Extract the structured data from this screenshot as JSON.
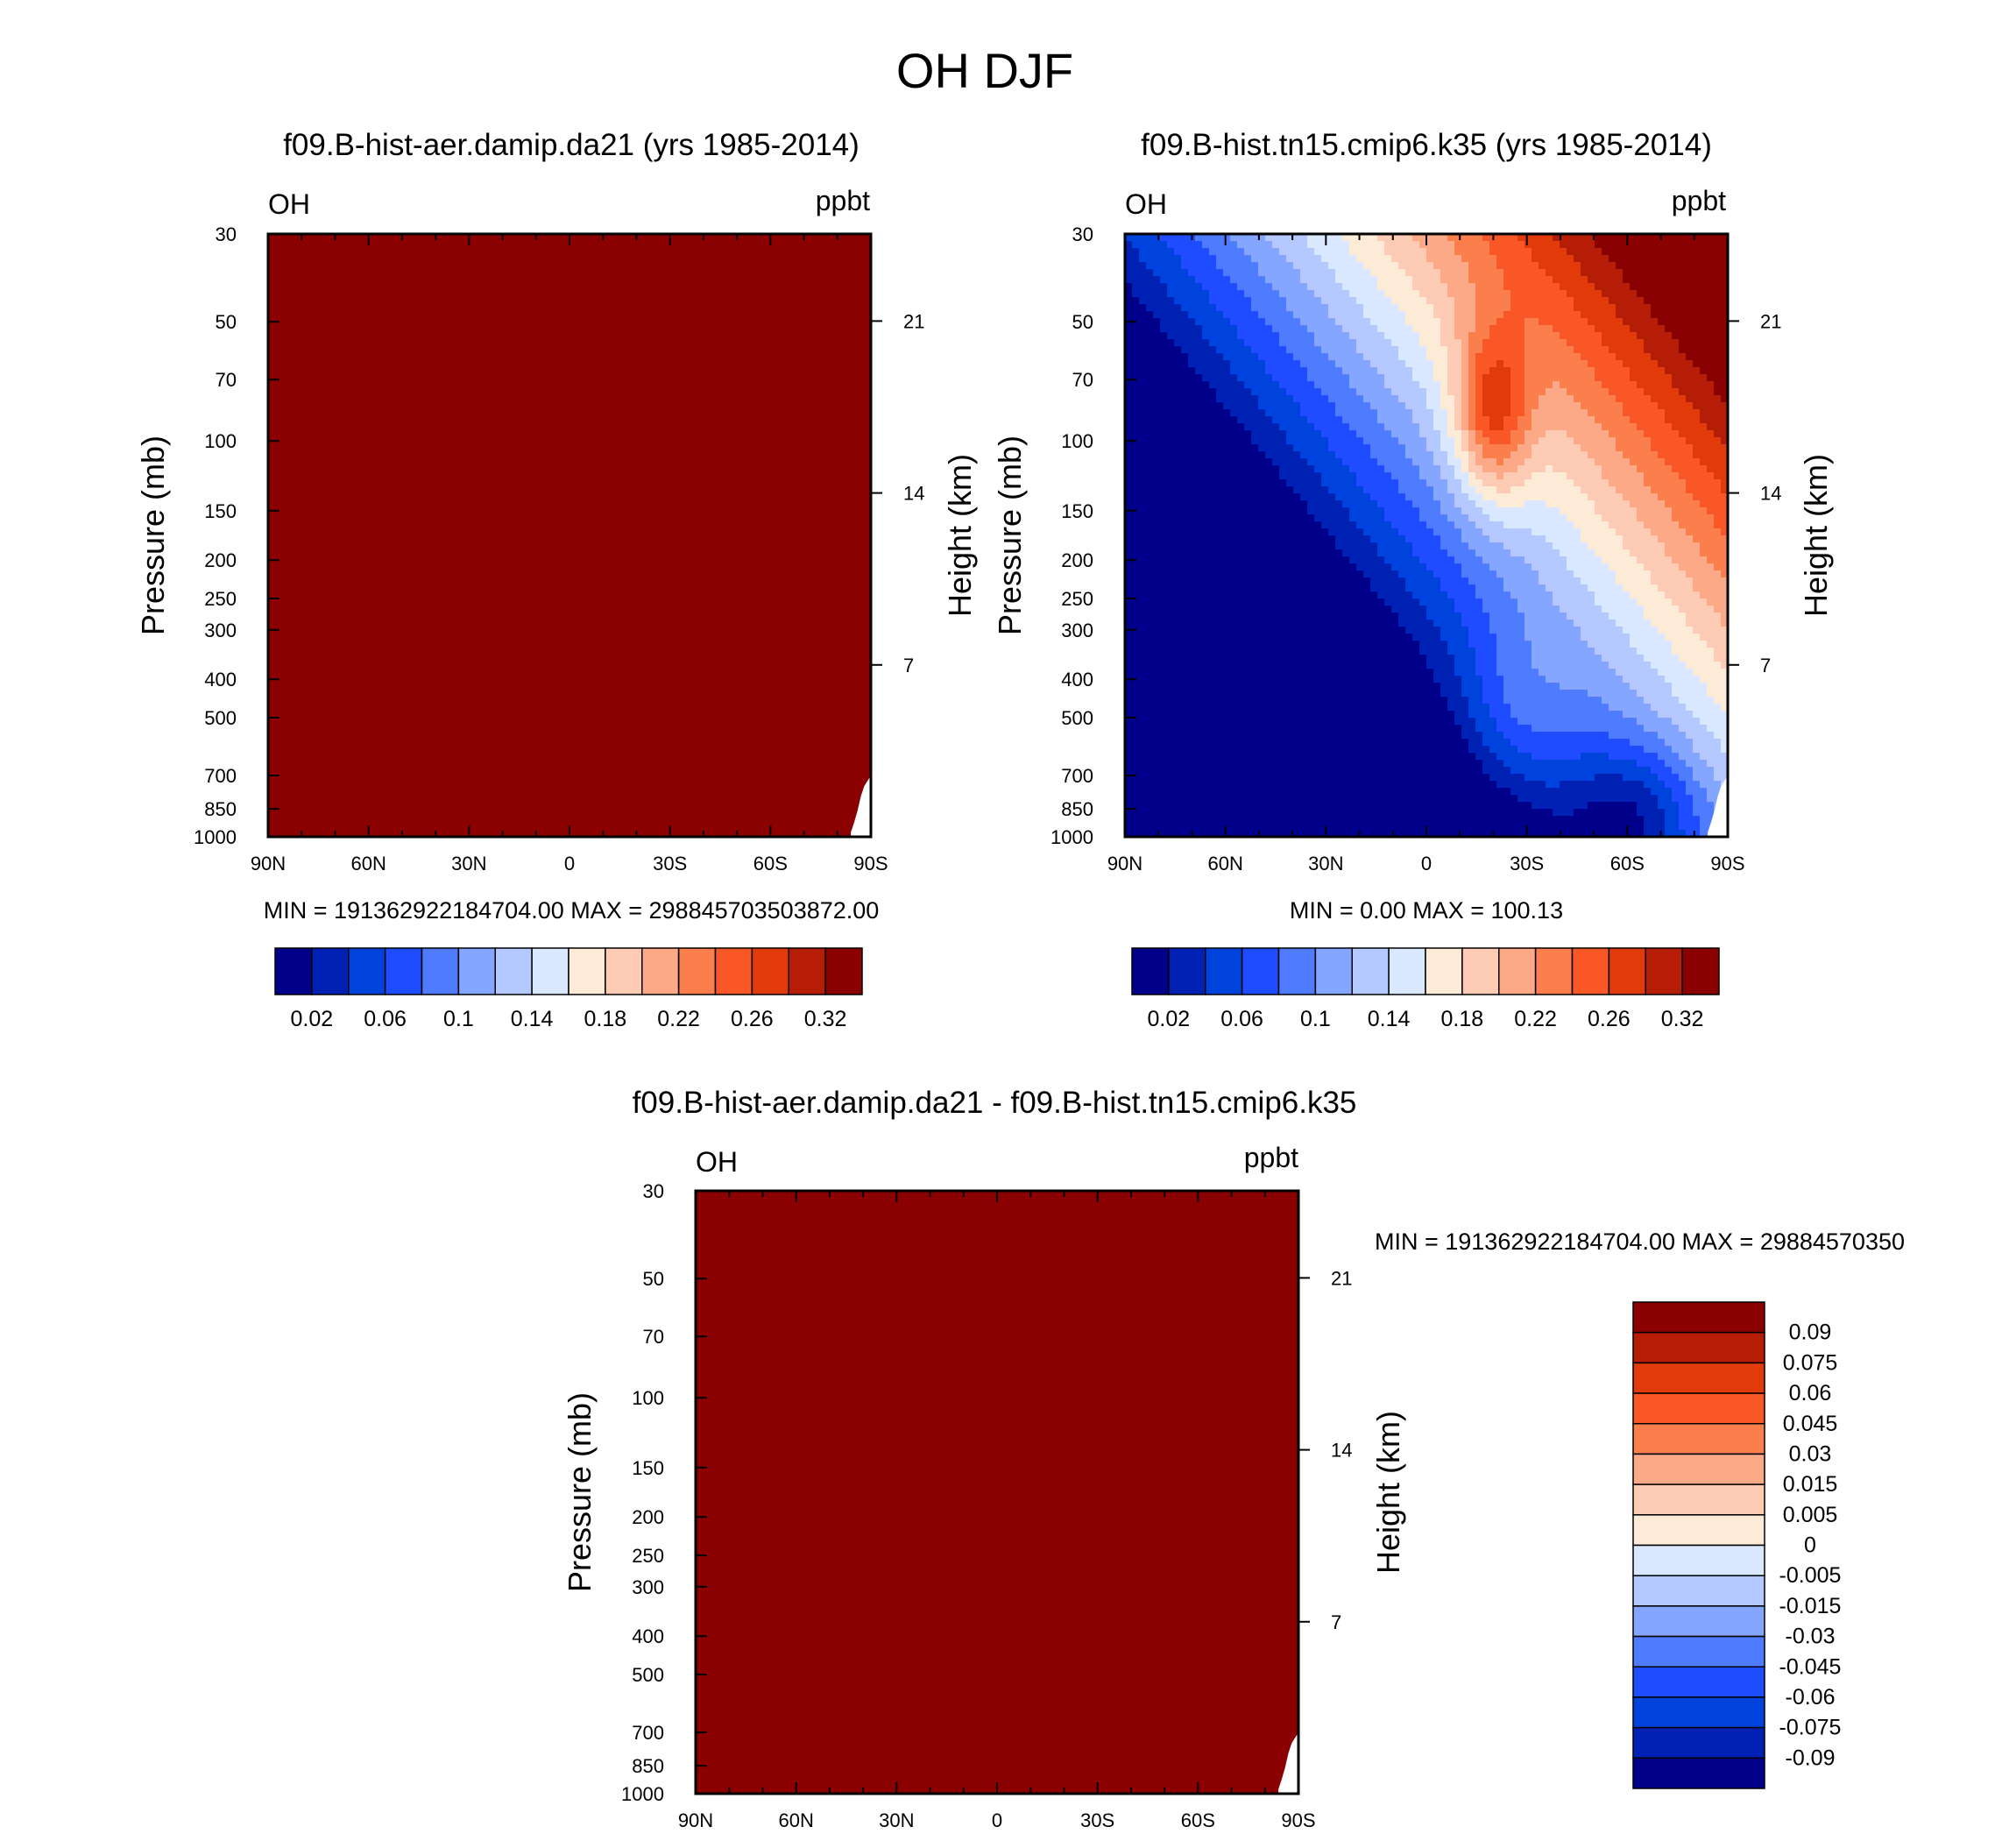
{
  "figure_title": "OH DJF",
  "colors": {
    "diverging": [
      "#00008b",
      "#0021b4",
      "#0042dc",
      "#1f4cff",
      "#4f7bff",
      "#84a6ff",
      "#b4c9ff",
      "#d9e8ff",
      "#fdebd7",
      "#fdcbb3",
      "#fca988",
      "#fb7e4d",
      "#f95725",
      "#e13a0b",
      "#b51d06",
      "#8b0000"
    ],
    "frame": "#000000",
    "background": "#ffffff"
  },
  "chart_data": [
    {
      "id": "panel-1",
      "type": "contour",
      "title": "f09.B-hist-aer.damip.da21 (yrs 1985-2014)",
      "variable_label": "OH",
      "units_label": "ppbt",
      "ylabel": "Pressure (mb)",
      "y2label": "Height (km)",
      "x_ticks": [
        "90N",
        "60N",
        "30N",
        "0",
        "30S",
        "60S",
        "90S"
      ],
      "x_range": [
        90,
        -90
      ],
      "y_ticks": [
        30,
        50,
        70,
        100,
        150,
        200,
        250,
        300,
        400,
        500,
        700,
        850,
        1000
      ],
      "y_range": [
        30,
        1000
      ],
      "y_scale": "log",
      "y2_ticks": [
        21,
        14,
        7
      ],
      "fill": "uniform",
      "fill_level": 15,
      "min_max_text": "MIN = 191362922184704.00  MAX = 298845703503872.00",
      "levels": [
        "0.02",
        "0.06",
        "0.1",
        "0.14",
        "0.18",
        "0.22",
        "0.26",
        "0.32"
      ]
    },
    {
      "id": "panel-2",
      "type": "contour",
      "title": "f09.B-hist.tn15.cmip6.k35 (yrs 1985-2014)",
      "variable_label": "OH",
      "units_label": "ppbt",
      "ylabel": "Pressure (mb)",
      "y2label": "Height (km)",
      "x_ticks": [
        "90N",
        "60N",
        "30N",
        "0",
        "30S",
        "60S",
        "90S"
      ],
      "x_range": [
        90,
        -90
      ],
      "y_ticks": [
        30,
        50,
        70,
        100,
        150,
        200,
        250,
        300,
        400,
        500,
        700,
        850,
        1000
      ],
      "y_range": [
        30,
        1000
      ],
      "y_scale": "log",
      "y2_ticks": [
        21,
        14,
        7
      ],
      "fill": "field",
      "min_max_text": "MIN =   0.00  MAX = 100.13",
      "levels": [
        "0.02",
        "0.06",
        "0.1",
        "0.14",
        "0.18",
        "0.22",
        "0.26",
        "0.32"
      ]
    },
    {
      "id": "panel-3",
      "type": "contour",
      "title": "f09.B-hist-aer.damip.da21 - f09.B-hist.tn15.cmip6.k35",
      "variable_label": "OH",
      "units_label": "ppbt",
      "ylabel": "Pressure (mb)",
      "y2label": "Height (km)",
      "x_ticks": [
        "90N",
        "60N",
        "30N",
        "0",
        "30S",
        "60S",
        "90S"
      ],
      "x_range": [
        90,
        -90
      ],
      "y_ticks": [
        30,
        50,
        70,
        100,
        150,
        200,
        250,
        300,
        400,
        500,
        700,
        850,
        1000
      ],
      "y_range": [
        30,
        1000
      ],
      "y_scale": "log",
      "y2_ticks": [
        21,
        14,
        7
      ],
      "fill": "uniform",
      "fill_level": 15,
      "min_max_text": "MIN = 191362922184704.00  MAX = 29884570350",
      "levels": [
        "0.09",
        "0.075",
        "0.06",
        "0.045",
        "0.03",
        "0.015",
        "0.005",
        "0",
        "-0.005",
        "-0.015",
        "-0.03",
        "-0.045",
        "-0.06",
        "-0.075",
        "-0.09"
      ]
    }
  ]
}
